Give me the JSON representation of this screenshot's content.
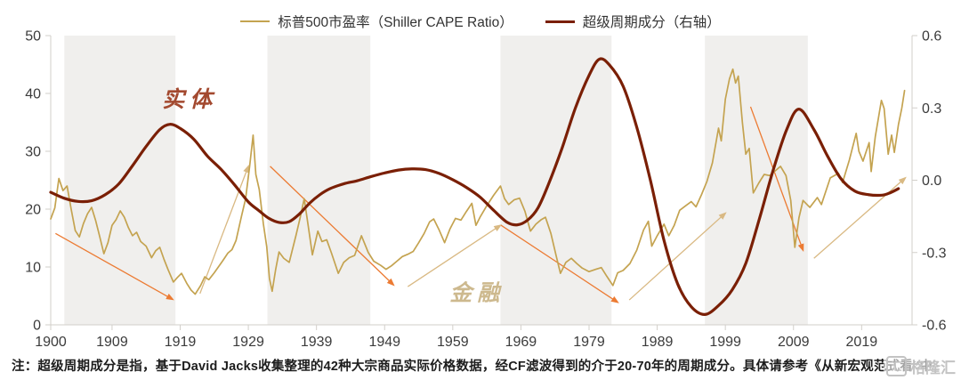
{
  "legend": {
    "items": [
      {
        "label": "标普500市盈率（Shiller CAPE Ratio）",
        "color": "#C4A350",
        "thickness": 2
      },
      {
        "label": "超级周期成分（右轴）",
        "color": "#7A1F05",
        "thickness": 3
      }
    ]
  },
  "footer": {
    "note": "注：超级周期成分是指，基于David Jacks收集整理的42种大宗商品实际价格数据，经CF滤波得到的介于20-70年的周期成分。具体请参考《从新宏观范式看“中"
  },
  "watermark": {
    "icon_char": "汇",
    "text": "格隆汇"
  },
  "chart_data": {
    "type": "line",
    "title": "",
    "xlabel": "",
    "ylabel_left": "",
    "ylabel_right": "",
    "grid": false,
    "legend_position": "top-center",
    "axis_color": "#D2CFCA",
    "label_color": "#3B3B3B",
    "x_axis": {
      "range": [
        1900,
        2026.4
      ],
      "ticks": [
        1900,
        1909,
        1919,
        1929,
        1939,
        1949,
        1959,
        1969,
        1979,
        1989,
        1999,
        2009,
        2019
      ]
    },
    "y_axis_left": {
      "range": [
        0,
        50
      ],
      "ticks": [
        0,
        10,
        20,
        30,
        40,
        50
      ]
    },
    "y_axis_right": {
      "range": [
        -0.6,
        0.6
      ],
      "ticks": [
        {
          "v": 0.6,
          "label": "0.6"
        },
        {
          "v": 0.3,
          "label": "0.3"
        },
        {
          "v": 0,
          "label": "0.0"
        },
        {
          "v": -0.3,
          "label": "-0.3"
        },
        {
          "v": -0.6,
          "label": "-0.6"
        }
      ]
    },
    "shaded_bands": {
      "color": "#F0EFED",
      "year_ranges": [
        [
          1902,
          1918.3
        ],
        [
          1931.8,
          1946.9
        ],
        [
          1966,
          1982.3
        ],
        [
          1996,
          2011.1
        ]
      ]
    },
    "series": [
      {
        "name": "标普500市盈率（Shiller CAPE Ratio）",
        "axis": "left",
        "color": "#C4A350",
        "width": 1.7,
        "smooth": false,
        "points": [
          [
            1900,
            18.3
          ],
          [
            1900.6,
            20.2
          ],
          [
            1901.2,
            25.3
          ],
          [
            1901.8,
            23.2
          ],
          [
            1902.4,
            24
          ],
          [
            1903,
            20
          ],
          [
            1903.6,
            16.3
          ],
          [
            1904.2,
            15.2
          ],
          [
            1904.8,
            17.5
          ],
          [
            1905.4,
            19.2
          ],
          [
            1906,
            20.3
          ],
          [
            1906.6,
            18
          ],
          [
            1907.2,
            15.2
          ],
          [
            1907.8,
            12.3
          ],
          [
            1908.4,
            14.2
          ],
          [
            1909,
            17.2
          ],
          [
            1909.6,
            18.2
          ],
          [
            1910.2,
            19.7
          ],
          [
            1910.8,
            18.6
          ],
          [
            1911.4,
            16.8
          ],
          [
            1912,
            15.4
          ],
          [
            1912.6,
            16
          ],
          [
            1913.2,
            14.4
          ],
          [
            1914,
            13.6
          ],
          [
            1914.8,
            11.6
          ],
          [
            1915.4,
            12.8
          ],
          [
            1916,
            13.4
          ],
          [
            1916.6,
            11.4
          ],
          [
            1917.2,
            9.6
          ],
          [
            1918,
            7.4
          ],
          [
            1918.6,
            8.2
          ],
          [
            1919.2,
            8.9
          ],
          [
            1920,
            7.1
          ],
          [
            1920.6,
            6
          ],
          [
            1921.2,
            5.3
          ],
          [
            1922,
            6.8
          ],
          [
            1922.6,
            8.3
          ],
          [
            1923.2,
            7.8
          ],
          [
            1924,
            9
          ],
          [
            1924.6,
            10
          ],
          [
            1925.2,
            11
          ],
          [
            1926,
            12.4
          ],
          [
            1926.6,
            13
          ],
          [
            1927.2,
            14.6
          ],
          [
            1928,
            18.8
          ],
          [
            1928.6,
            21.8
          ],
          [
            1929.2,
            27.5
          ],
          [
            1929.7,
            32.8
          ],
          [
            1930.1,
            26
          ],
          [
            1930.6,
            23.4
          ],
          [
            1931.2,
            17.5
          ],
          [
            1931.7,
            13.5
          ],
          [
            1932.1,
            8
          ],
          [
            1932.5,
            5.8
          ],
          [
            1933,
            9.5
          ],
          [
            1933.5,
            12.6
          ],
          [
            1934.2,
            11.5
          ],
          [
            1935,
            10.8
          ],
          [
            1936,
            15.5
          ],
          [
            1936.6,
            18.5
          ],
          [
            1937.2,
            21.8
          ],
          [
            1937.8,
            17
          ],
          [
            1938.4,
            12.1
          ],
          [
            1939.2,
            16.2
          ],
          [
            1939.8,
            14.4
          ],
          [
            1940.5,
            14.7
          ],
          [
            1941.2,
            12.4
          ],
          [
            1942.2,
            8.9
          ],
          [
            1943,
            10.8
          ],
          [
            1943.8,
            11.6
          ],
          [
            1944.6,
            12
          ],
          [
            1945.6,
            15.4
          ],
          [
            1946.6,
            12.5
          ],
          [
            1947.4,
            11
          ],
          [
            1948.4,
            10.3
          ],
          [
            1949.2,
            9.6
          ],
          [
            1950,
            10.2
          ],
          [
            1950.8,
            11
          ],
          [
            1951.6,
            11.8
          ],
          [
            1952.4,
            12.2
          ],
          [
            1953.2,
            12.7
          ],
          [
            1954,
            14.2
          ],
          [
            1954.8,
            15.8
          ],
          [
            1955.6,
            17.8
          ],
          [
            1956.2,
            18.3
          ],
          [
            1957,
            16.4
          ],
          [
            1957.8,
            14.2
          ],
          [
            1958.6,
            16.6
          ],
          [
            1959.4,
            18.4
          ],
          [
            1960.2,
            18.1
          ],
          [
            1961,
            19.6
          ],
          [
            1961.8,
            21
          ],
          [
            1962.4,
            17.2
          ],
          [
            1963,
            18.6
          ],
          [
            1964,
            20.6
          ],
          [
            1965,
            22.4
          ],
          [
            1966,
            24
          ],
          [
            1966.6,
            21.8
          ],
          [
            1967.2,
            20.8
          ],
          [
            1968,
            21.6
          ],
          [
            1968.8,
            21.9
          ],
          [
            1969.6,
            19.6
          ],
          [
            1970.4,
            16.2
          ],
          [
            1971.2,
            17.4
          ],
          [
            1972,
            18.2
          ],
          [
            1972.6,
            18.6
          ],
          [
            1973.4,
            15.8
          ],
          [
            1974.2,
            11.8
          ],
          [
            1974.8,
            8.9
          ],
          [
            1975.6,
            10.8
          ],
          [
            1976.4,
            11.5
          ],
          [
            1977.2,
            10.6
          ],
          [
            1978,
            9.8
          ],
          [
            1979,
            9.2
          ],
          [
            1980,
            9.6
          ],
          [
            1980.8,
            9.9
          ],
          [
            1981.6,
            8.4
          ],
          [
            1982.5,
            6.8
          ],
          [
            1983.2,
            9
          ],
          [
            1984,
            9.4
          ],
          [
            1985,
            10.6
          ],
          [
            1986,
            12.9
          ],
          [
            1987,
            16.4
          ],
          [
            1987.7,
            17.9
          ],
          [
            1988.2,
            13.6
          ],
          [
            1989,
            15.4
          ],
          [
            1990,
            17.4
          ],
          [
            1990.7,
            15.4
          ],
          [
            1991.5,
            17.2
          ],
          [
            1992.3,
            19.8
          ],
          [
            1993.2,
            20.6
          ],
          [
            1994,
            21.3
          ],
          [
            1994.7,
            20.4
          ],
          [
            1995.5,
            22.5
          ],
          [
            1996.3,
            24.8
          ],
          [
            1997.1,
            28
          ],
          [
            1998,
            34
          ],
          [
            1998.4,
            31.8
          ],
          [
            1999,
            39
          ],
          [
            1999.6,
            42.5
          ],
          [
            2000.1,
            44.2
          ],
          [
            2000.5,
            41.8
          ],
          [
            2000.9,
            43
          ],
          [
            2001.5,
            35
          ],
          [
            2002,
            29.5
          ],
          [
            2002.5,
            30.5
          ],
          [
            2003.1,
            22.8
          ],
          [
            2003.9,
            24.5
          ],
          [
            2004.7,
            26
          ],
          [
            2005.5,
            25.8
          ],
          [
            2006.3,
            26.6
          ],
          [
            2007.1,
            27.4
          ],
          [
            2007.9,
            25.8
          ],
          [
            2008.6,
            21.5
          ],
          [
            2009.2,
            13.4
          ],
          [
            2009.8,
            18.5
          ],
          [
            2010.4,
            21.5
          ],
          [
            2011.4,
            20.3
          ],
          [
            2012.5,
            22
          ],
          [
            2013.1,
            20.8
          ],
          [
            2014.4,
            25.4
          ],
          [
            2015.6,
            26.2
          ],
          [
            2016.2,
            24.6
          ],
          [
            2017.2,
            28.5
          ],
          [
            2018.2,
            33.1
          ],
          [
            2018.6,
            30
          ],
          [
            2019.2,
            28.3
          ],
          [
            2020.1,
            31.5
          ],
          [
            2020.4,
            26.5
          ],
          [
            2021,
            32.5
          ],
          [
            2021.9,
            38.8
          ],
          [
            2022.3,
            37.4
          ],
          [
            2022.9,
            29.5
          ],
          [
            2023.4,
            32.8
          ],
          [
            2023.8,
            29.8
          ],
          [
            2024.4,
            34.6
          ],
          [
            2024.9,
            37.5
          ],
          [
            2025.3,
            40.5
          ]
        ]
      },
      {
        "name": "超级周期成分（右轴）",
        "axis": "right",
        "color": "#7A1F05",
        "width": 3.2,
        "smooth": true,
        "points": [
          [
            1900,
            -0.05
          ],
          [
            1902,
            -0.075
          ],
          [
            1904,
            -0.088
          ],
          [
            1906,
            -0.085
          ],
          [
            1908,
            -0.06
          ],
          [
            1910,
            -0.015
          ],
          [
            1912,
            0.06
          ],
          [
            1914,
            0.14
          ],
          [
            1916,
            0.21
          ],
          [
            1917.5,
            0.232
          ],
          [
            1919,
            0.215
          ],
          [
            1921,
            0.17
          ],
          [
            1923,
            0.1
          ],
          [
            1925,
            0.045
          ],
          [
            1927,
            -0.02
          ],
          [
            1929,
            -0.09
          ],
          [
            1930.5,
            -0.125
          ],
          [
            1932,
            -0.158
          ],
          [
            1933.5,
            -0.175
          ],
          [
            1935,
            -0.172
          ],
          [
            1936.5,
            -0.14
          ],
          [
            1938,
            -0.095
          ],
          [
            1939.5,
            -0.06
          ],
          [
            1941,
            -0.035
          ],
          [
            1943,
            -0.015
          ],
          [
            1945,
            -0.002
          ],
          [
            1947,
            0.015
          ],
          [
            1949,
            0.03
          ],
          [
            1951,
            0.042
          ],
          [
            1953,
            0.047
          ],
          [
            1955,
            0.044
          ],
          [
            1957,
            0.028
          ],
          [
            1959,
            0.002
          ],
          [
            1961,
            -0.03
          ],
          [
            1963,
            -0.07
          ],
          [
            1965,
            -0.125
          ],
          [
            1967,
            -0.175
          ],
          [
            1968.5,
            -0.185
          ],
          [
            1970,
            -0.165
          ],
          [
            1971.5,
            -0.115
          ],
          [
            1973,
            -0.02
          ],
          [
            1975,
            0.13
          ],
          [
            1977,
            0.3
          ],
          [
            1979,
            0.435
          ],
          [
            1980.5,
            0.502
          ],
          [
            1982,
            0.478
          ],
          [
            1984,
            0.39
          ],
          [
            1986,
            0.22
          ],
          [
            1988,
            0
          ],
          [
            1990,
            -0.25
          ],
          [
            1992,
            -0.43
          ],
          [
            1994,
            -0.525
          ],
          [
            1996,
            -0.557
          ],
          [
            1998,
            -0.52
          ],
          [
            2000,
            -0.455
          ],
          [
            2002,
            -0.345
          ],
          [
            2004,
            -0.16
          ],
          [
            2006,
            0.04
          ],
          [
            2008,
            0.21
          ],
          [
            2009.8,
            0.295
          ],
          [
            2012,
            0.21
          ],
          [
            2014,
            0.1
          ],
          [
            2016,
            0.005
          ],
          [
            2018,
            -0.045
          ],
          [
            2020,
            -0.06
          ],
          [
            2022,
            -0.062
          ],
          [
            2023.2,
            -0.052
          ],
          [
            2024.4,
            -0.035
          ]
        ]
      }
    ],
    "annotations": {
      "labels": [
        {
          "text": "实体",
          "year": 1920.4,
          "value": 37.7,
          "color": "#A3492F"
        },
        {
          "text": "金融",
          "year": 1962.6,
          "value": 4.2,
          "color": "#CDB98E"
        }
      ],
      "arrows": [
        {
          "from": [
            1900.7,
            15.8
          ],
          "to": [
            1917.9,
            4.4
          ],
          "color": "#EC7B33"
        },
        {
          "from": [
            1921.9,
            5.4
          ],
          "to": [
            1929.0,
            27.4
          ],
          "color": "#D9B983"
        },
        {
          "from": [
            1932.2,
            27.4
          ],
          "to": [
            1950.3,
            6.9
          ],
          "color": "#EC7B33"
        },
        {
          "from": [
            1952.4,
            6.6
          ],
          "to": [
            1966.0,
            17.2
          ],
          "color": "#D9B983"
        },
        {
          "from": [
            1966.1,
            17.2
          ],
          "to": [
            1983.2,
            3.9
          ],
          "color": "#EC7B33"
        },
        {
          "from": [
            1984.9,
            4.3
          ],
          "to": [
            1999.0,
            19.3
          ],
          "color": "#D9B983"
        },
        {
          "from": [
            2002.7,
            37.7
          ],
          "to": [
            2010.4,
            12.9
          ],
          "color": "#EC7B33"
        },
        {
          "from": [
            2012.0,
            11.5
          ],
          "to": [
            2025.4,
            25.4
          ],
          "color": "#D9B983"
        }
      ]
    }
  }
}
